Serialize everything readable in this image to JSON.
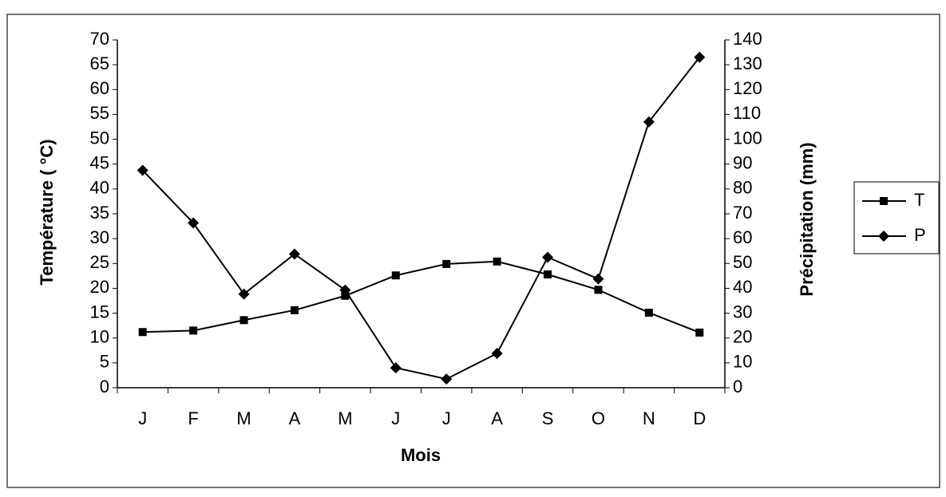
{
  "chart_data": {
    "type": "line",
    "categories": [
      "J",
      "F",
      "M",
      "A",
      "M",
      "J",
      "J",
      "A",
      "S",
      "O",
      "N",
      "D"
    ],
    "series": [
      {
        "name": "T",
        "color": "#000000",
        "marker": "square",
        "axis": "y",
        "values": [
          11.2,
          11.5,
          13.6,
          15.6,
          18.5,
          22.6,
          24.9,
          25.4,
          22.8,
          19.7,
          15.1,
          11.1
        ]
      },
      {
        "name": "P",
        "color": "#000000",
        "marker": "diamond",
        "axis": "y2",
        "values": [
          87.5,
          66.3,
          37.7,
          53.8,
          39.3,
          8,
          3.5,
          13.8,
          52.5,
          43.8,
          107,
          133
        ]
      }
    ],
    "ylabel": "Température ( °C)",
    "y2label": "Précipitation (mm)",
    "xlabel": "Mois",
    "ylim": [
      0,
      70
    ],
    "yticks": [
      0,
      5,
      10,
      15,
      20,
      25,
      30,
      35,
      40,
      45,
      50,
      55,
      60,
      65,
      70
    ],
    "y2lim": [
      0,
      140
    ],
    "y2ticks": [
      0,
      10,
      20,
      30,
      40,
      50,
      60,
      70,
      80,
      90,
      100,
      110,
      120,
      130,
      140
    ],
    "legend": "right"
  }
}
